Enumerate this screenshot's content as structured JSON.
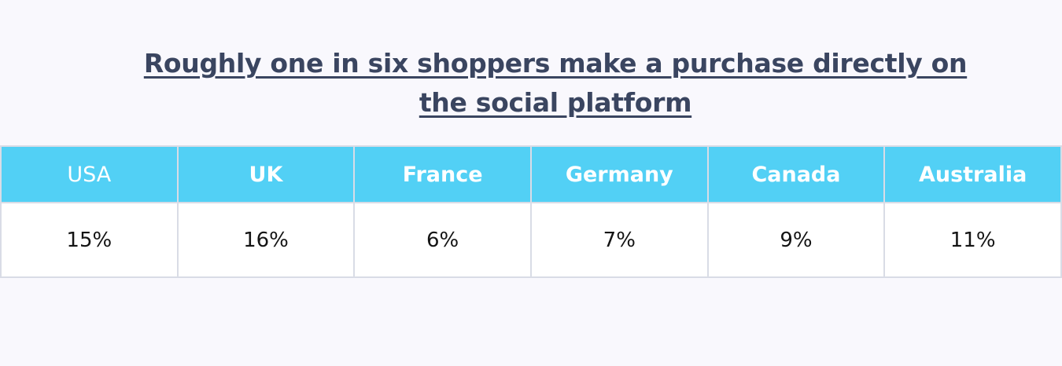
{
  "title": "Roughly one in six shoppers make a purchase directly on the social platform",
  "chart_data": {
    "type": "table",
    "title": "Roughly one in six shoppers make a purchase directly on the social platform",
    "columns": [
      "USA",
      "UK",
      "France",
      "Germany",
      "Canada",
      "Australia"
    ],
    "rows": [
      [
        "15%",
        "16%",
        "6%",
        "7%",
        "9%",
        "11%"
      ]
    ],
    "values": [
      15,
      16,
      6,
      7,
      9,
      11
    ],
    "unit": "%"
  },
  "colors": {
    "header_background": "#52d0f5",
    "header_text": "#ffffff",
    "title_text": "#3a4560",
    "cell_text": "#141414",
    "border": "#d9dce6",
    "page_background": "#f9f8fd"
  }
}
